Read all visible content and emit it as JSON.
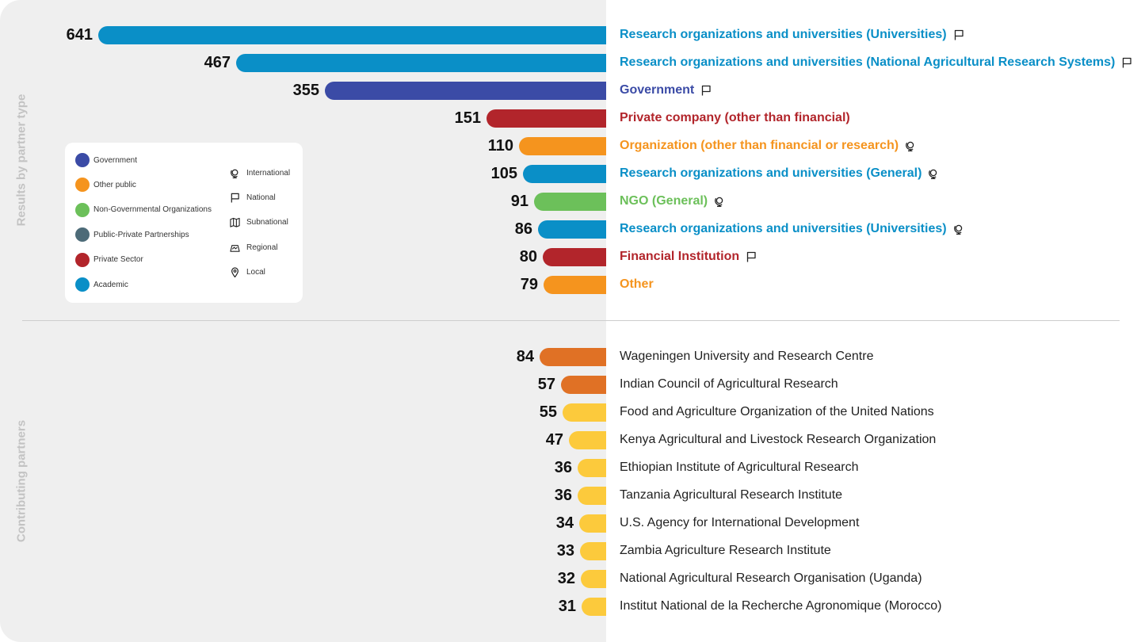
{
  "side_labels": {
    "top": "Results by partner type",
    "bottom": "Contributing partners"
  },
  "colors": {
    "Government": "#3b4ba6",
    "Other public": "#f5941e",
    "Non-Governmental Organizations": "#6cc05a",
    "Public-Private Partnerships": "#4d6b78",
    "Private Sector": "#b2252b",
    "Academic": "#0a8fc7",
    "partner_dark": "#e07125",
    "partner_light": "#fcca3c"
  },
  "legend": {
    "categories": [
      {
        "label": "Government",
        "color": "#3b4ba6"
      },
      {
        "label": "Other public",
        "color": "#f5941e"
      },
      {
        "label": "Non-Governmental Organizations",
        "color": "#6cc05a"
      },
      {
        "label": "Public-Private Partnerships",
        "color": "#4d6b78"
      },
      {
        "label": "Private Sector",
        "color": "#b2252b"
      },
      {
        "label": "Academic",
        "color": "#0a8fc7"
      }
    ],
    "scopes": [
      {
        "label": "International",
        "icon": "globe-icon"
      },
      {
        "label": "National",
        "icon": "flag-icon"
      },
      {
        "label": "Subnational",
        "icon": "map-icon"
      },
      {
        "label": "Regional",
        "icon": "region-icon"
      },
      {
        "label": "Local",
        "icon": "pin-icon"
      }
    ]
  },
  "chart_data": [
    {
      "type": "bar",
      "orientation": "horizontal",
      "title": "Results by partner type",
      "xlim": [
        0,
        641
      ],
      "categories": [
        "Research organizations and universities (Universities)",
        "Research organizations and universities (National Agricultural Research Systems)",
        "Government",
        "Private company (other than financial)",
        "Organization (other than financial or research)",
        "Research organizations and universities (General)",
        "NGO (General)",
        "Research organizations and universities (Universities)",
        "Financial Institution",
        "Other"
      ],
      "values": [
        641,
        467,
        355,
        151,
        110,
        105,
        91,
        86,
        80,
        79
      ],
      "colors": [
        "#0a8fc7",
        "#0a8fc7",
        "#3b4ba6",
        "#b2252b",
        "#f5941e",
        "#0a8fc7",
        "#6cc05a",
        "#0a8fc7",
        "#b2252b",
        "#f5941e"
      ],
      "scopes": [
        "National",
        "National",
        "National",
        "",
        "International",
        "International",
        "International",
        "International",
        "National",
        ""
      ]
    },
    {
      "type": "bar",
      "orientation": "horizontal",
      "title": "Contributing partners",
      "xlim": [
        0,
        641
      ],
      "categories": [
        "Wageningen University and Research Centre",
        "Indian Council of Agricultural Research",
        "Food and Agriculture Organization of the United Nations",
        "Kenya Agricultural and Livestock Research Organization",
        "Ethiopian Institute of Agricultural Research",
        "Tanzania Agricultural Research Institute",
        "U.S. Agency for International Development",
        "Zambia Agriculture Research Institute",
        "National Agricultural Research Organisation (Uganda)",
        "Institut National de la Recherche Agronomique (Morocco)"
      ],
      "values": [
        84,
        57,
        55,
        47,
        36,
        36,
        34,
        33,
        32,
        31
      ],
      "colors": [
        "#e07125",
        "#e07125",
        "#fcca3c",
        "#fcca3c",
        "#fcca3c",
        "#fcca3c",
        "#fcca3c",
        "#fcca3c",
        "#fcca3c",
        "#fcca3c"
      ]
    }
  ]
}
